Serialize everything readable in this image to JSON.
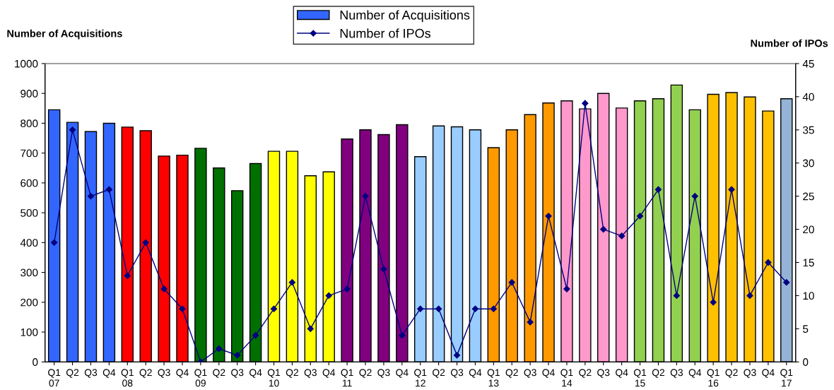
{
  "chart_data": {
    "type": "bar",
    "ylabel": "Number of Acquisitions",
    "y2label": "Number of IPOs",
    "categories": [
      "Q1\n07",
      "Q2",
      "Q3",
      "Q4",
      "Q1\n08",
      "Q2",
      "Q3",
      "Q4",
      "Q1\n09",
      "Q2",
      "Q3",
      "Q4",
      "Q1\n10",
      "Q2",
      "Q3",
      "Q4",
      "Q1\n11",
      "Q2",
      "Q3",
      "Q4",
      "Q1\n12",
      "Q2",
      "Q3",
      "Q4",
      "Q1\n13",
      "Q2",
      "Q3",
      "Q4",
      "Q1\n14",
      "Q2",
      "Q3",
      "Q4",
      "Q1\n15",
      "Q2",
      "Q3",
      "Q4",
      "Q1\n16",
      "Q2",
      "Q3",
      "Q4",
      "Q1\n17"
    ],
    "series": [
      {
        "name": "Number of Acquisitions",
        "color": "#3366ff",
        "colors": [
          "#3366ff",
          "#3366ff",
          "#3366ff",
          "#3366ff",
          "#ff0000",
          "#ff0000",
          "#ff0000",
          "#ff0000",
          "#007000",
          "#007000",
          "#007000",
          "#007000",
          "#ffff00",
          "#ffff00",
          "#ffff00",
          "#ffff00",
          "#800080",
          "#800080",
          "#800080",
          "#800080",
          "#99ccff",
          "#99ccff",
          "#99ccff",
          "#99ccff",
          "#ff9900",
          "#ff9900",
          "#ff9900",
          "#ff9900",
          "#ff99cc",
          "#ff99cc",
          "#ff99cc",
          "#ff99cc",
          "#92d050",
          "#92d050",
          "#92d050",
          "#92d050",
          "#ffc000",
          "#ffc000",
          "#ffc000",
          "#ffc000",
          "#95b3d7"
        ],
        "values": [
          845,
          803,
          772,
          800,
          787,
          775,
          690,
          693,
          716,
          650,
          574,
          665,
          706,
          706,
          624,
          637,
          747,
          778,
          762,
          795,
          688,
          791,
          788,
          778,
          718,
          778,
          829,
          868,
          875,
          848,
          900,
          851,
          875,
          882,
          928,
          845,
          897,
          903,
          888,
          841,
          882
        ]
      },
      {
        "name": "Number of IPOs",
        "type": "line",
        "axis": "y2",
        "color": "#000080",
        "marker": "diamond",
        "values": [
          18,
          35,
          25,
          26,
          13,
          18,
          11,
          8,
          0,
          2,
          1,
          4,
          8,
          12,
          5,
          10,
          11,
          25,
          14,
          4,
          8,
          8,
          1,
          8,
          8,
          12,
          6,
          22,
          11,
          39,
          20,
          19,
          22,
          26,
          10,
          25,
          9,
          26,
          10,
          15,
          12
        ]
      }
    ],
    "ylim": [
      0,
      1000
    ],
    "yticks": [
      0,
      100,
      200,
      300,
      400,
      500,
      600,
      700,
      800,
      900,
      1000
    ],
    "y2lim": [
      0,
      45
    ],
    "y2ticks": [
      0,
      5,
      10,
      15,
      20,
      25,
      30,
      35,
      40,
      45
    ],
    "grid": false,
    "legend": "top"
  }
}
